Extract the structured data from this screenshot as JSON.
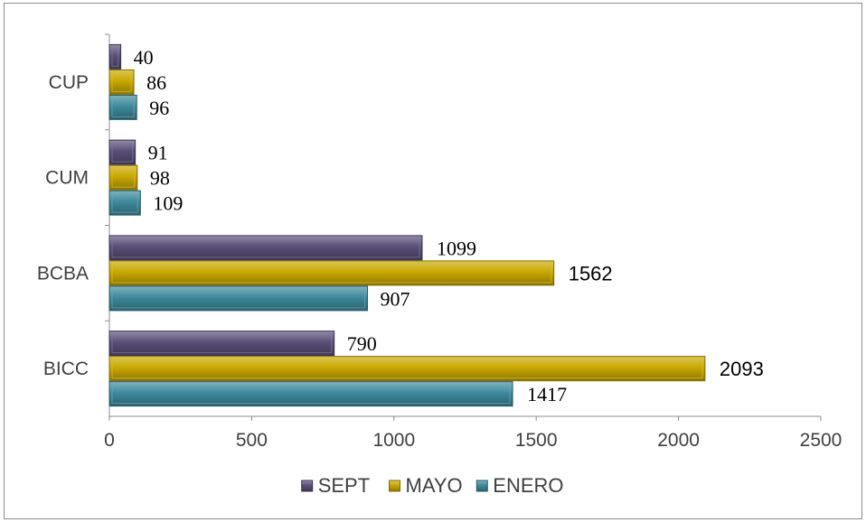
{
  "chart_data": {
    "type": "bar",
    "orientation": "horizontal",
    "title": "",
    "xlabel": "",
    "ylabel": "",
    "categories": [
      "BICC",
      "BCBA",
      "CUM",
      "CUP"
    ],
    "series": [
      {
        "name": "SEPT",
        "values": [
          790,
          1099,
          91,
          40
        ],
        "color": "#5a4f78"
      },
      {
        "name": "MAYO",
        "values": [
          2093,
          1562,
          98,
          86
        ],
        "color": "#c9a800"
      },
      {
        "name": "ENERO",
        "values": [
          1417,
          907,
          109,
          96
        ],
        "color": "#3e8a9c"
      }
    ],
    "xlim": [
      0,
      2500
    ],
    "x_ticks": [
      "0",
      "500",
      "1000",
      "1500",
      "2000",
      "2500"
    ],
    "grid": false,
    "legend_position": "bottom",
    "data_labels": true
  }
}
